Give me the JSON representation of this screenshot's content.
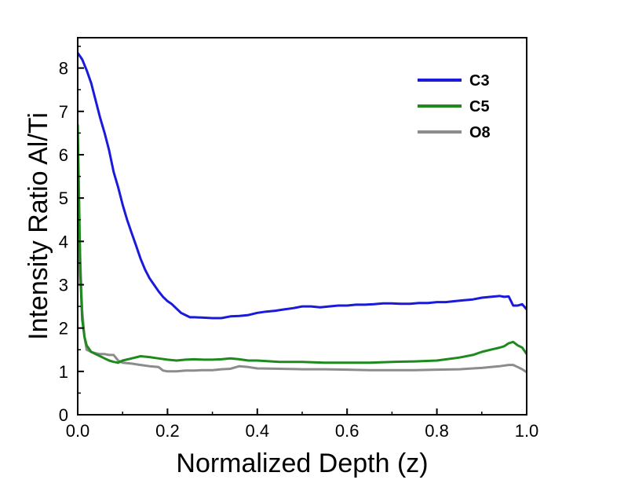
{
  "chart_data": {
    "type": "line",
    "title": "",
    "xlabel": "Normalized Depth (z)",
    "ylabel": "Intensity Ratio Al/Ti",
    "xlim": [
      0.0,
      1.0
    ],
    "ylim": [
      0,
      8.7
    ],
    "xticks": [
      0.0,
      0.2,
      0.4,
      0.6,
      0.8,
      1.0
    ],
    "xtick_labels": [
      "0.0",
      "0.2",
      "0.4",
      "0.6",
      "0.8",
      "1.0"
    ],
    "yticks": [
      0,
      1,
      2,
      3,
      4,
      5,
      6,
      7,
      8
    ],
    "ytick_labels": [
      "0",
      "1",
      "2",
      "3",
      "4",
      "5",
      "6",
      "7",
      "8"
    ],
    "grid": false,
    "legend": "top-right",
    "series": [
      {
        "name": "C3",
        "color": "#1a1adc",
        "x": [
          0.0,
          0.01,
          0.02,
          0.03,
          0.04,
          0.05,
          0.06,
          0.07,
          0.08,
          0.09,
          0.1,
          0.11,
          0.12,
          0.13,
          0.14,
          0.15,
          0.16,
          0.17,
          0.18,
          0.19,
          0.2,
          0.21,
          0.22,
          0.23,
          0.24,
          0.25,
          0.26,
          0.28,
          0.3,
          0.32,
          0.34,
          0.36,
          0.38,
          0.4,
          0.42,
          0.44,
          0.46,
          0.48,
          0.5,
          0.52,
          0.54,
          0.56,
          0.58,
          0.6,
          0.62,
          0.64,
          0.66,
          0.68,
          0.7,
          0.72,
          0.74,
          0.76,
          0.78,
          0.8,
          0.82,
          0.84,
          0.86,
          0.88,
          0.9,
          0.92,
          0.94,
          0.95,
          0.96,
          0.97,
          0.98,
          0.99,
          1.0
        ],
        "y": [
          8.35,
          8.2,
          7.95,
          7.65,
          7.25,
          6.85,
          6.5,
          6.1,
          5.6,
          5.25,
          4.85,
          4.5,
          4.2,
          3.9,
          3.6,
          3.35,
          3.15,
          3.0,
          2.85,
          2.72,
          2.62,
          2.55,
          2.45,
          2.35,
          2.3,
          2.25,
          2.25,
          2.24,
          2.23,
          2.23,
          2.27,
          2.28,
          2.3,
          2.35,
          2.38,
          2.4,
          2.43,
          2.46,
          2.5,
          2.5,
          2.48,
          2.5,
          2.52,
          2.52,
          2.54,
          2.54,
          2.55,
          2.57,
          2.57,
          2.56,
          2.56,
          2.58,
          2.58,
          2.6,
          2.6,
          2.62,
          2.64,
          2.66,
          2.7,
          2.72,
          2.74,
          2.72,
          2.73,
          2.52,
          2.52,
          2.55,
          2.43
        ]
      },
      {
        "name": "C5",
        "color": "#1e8a1e",
        "x": [
          0.0,
          0.003,
          0.006,
          0.01,
          0.015,
          0.02,
          0.03,
          0.04,
          0.05,
          0.06,
          0.07,
          0.08,
          0.09,
          0.1,
          0.12,
          0.14,
          0.16,
          0.18,
          0.2,
          0.22,
          0.24,
          0.26,
          0.28,
          0.3,
          0.32,
          0.34,
          0.36,
          0.38,
          0.4,
          0.45,
          0.5,
          0.55,
          0.6,
          0.65,
          0.7,
          0.75,
          0.8,
          0.85,
          0.88,
          0.9,
          0.92,
          0.94,
          0.95,
          0.96,
          0.97,
          0.98,
          0.99,
          1.0
        ],
        "y": [
          6.7,
          5.0,
          3.2,
          2.2,
          1.8,
          1.6,
          1.45,
          1.4,
          1.35,
          1.3,
          1.25,
          1.22,
          1.2,
          1.25,
          1.3,
          1.35,
          1.33,
          1.3,
          1.27,
          1.25,
          1.27,
          1.28,
          1.27,
          1.27,
          1.28,
          1.3,
          1.28,
          1.25,
          1.25,
          1.22,
          1.22,
          1.2,
          1.2,
          1.2,
          1.22,
          1.23,
          1.25,
          1.32,
          1.38,
          1.45,
          1.5,
          1.55,
          1.58,
          1.65,
          1.68,
          1.6,
          1.55,
          1.4
        ]
      },
      {
        "name": "O8",
        "color": "#8c8c8c",
        "x": [
          0.0,
          0.003,
          0.006,
          0.01,
          0.015,
          0.02,
          0.03,
          0.04,
          0.05,
          0.06,
          0.07,
          0.08,
          0.09,
          0.1,
          0.12,
          0.14,
          0.16,
          0.18,
          0.19,
          0.2,
          0.22,
          0.24,
          0.26,
          0.28,
          0.3,
          0.32,
          0.34,
          0.36,
          0.38,
          0.4,
          0.45,
          0.5,
          0.55,
          0.6,
          0.65,
          0.7,
          0.75,
          0.8,
          0.85,
          0.88,
          0.9,
          0.92,
          0.94,
          0.96,
          0.97,
          0.98,
          0.99,
          1.0
        ],
        "y": [
          3.0,
          4.5,
          3.5,
          2.4,
          1.8,
          1.5,
          1.45,
          1.42,
          1.4,
          1.4,
          1.38,
          1.38,
          1.25,
          1.2,
          1.18,
          1.15,
          1.12,
          1.1,
          1.02,
          1.0,
          1.0,
          1.02,
          1.02,
          1.03,
          1.03,
          1.05,
          1.06,
          1.12,
          1.1,
          1.07,
          1.06,
          1.05,
          1.05,
          1.04,
          1.03,
          1.03,
          1.03,
          1.04,
          1.05,
          1.07,
          1.08,
          1.1,
          1.12,
          1.15,
          1.15,
          1.1,
          1.05,
          0.98
        ]
      }
    ]
  }
}
